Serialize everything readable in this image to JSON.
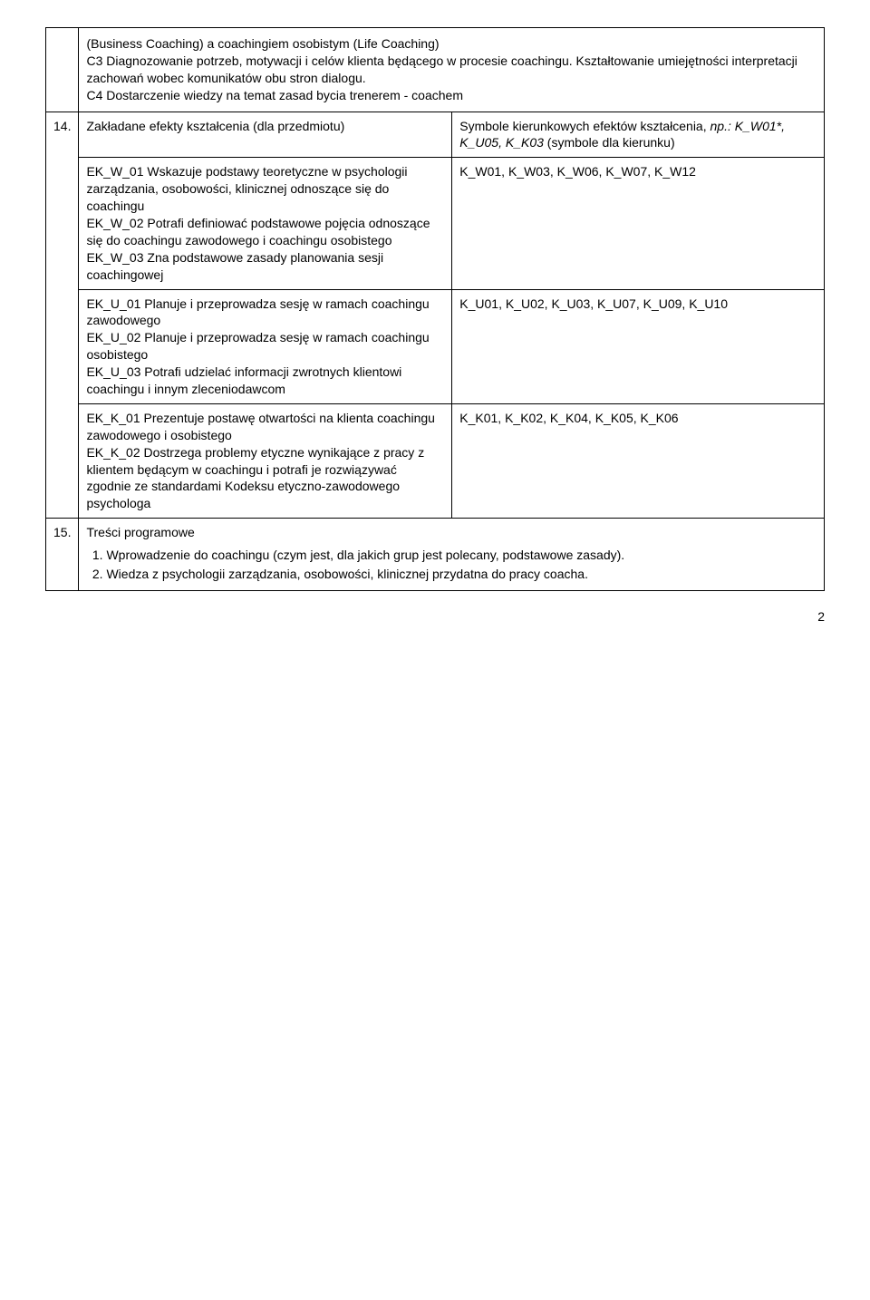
{
  "row13": {
    "text": "(Business Coaching) a coachingiem osobistym (Life Coaching)\nC3 Diagnozowanie potrzeb, motywacji i celów klienta będącego w procesie coachingu. Kształtowanie umiejętności interpretacji zachowań wobec komunikatów obu stron dialogu.\nC4 Dostarczenie wiedzy na temat zasad bycia trenerem - coachem"
  },
  "row14": {
    "num": "14.",
    "header_left": "Zakładane efekty kształcenia (dla przedmiotu)",
    "header_right_1": "Symbole kierunkowych efektów kształcenia, ",
    "header_right_italic": "np.: K_W01*, K_U05, K_K03",
    "header_right_2": " (symbole dla kierunku)",
    "ek_w_left": "EK_W_01 Wskazuje podstawy teoretyczne w psychologii zarządzania, osobowości, klinicznej odnoszące się do coachingu\nEK_W_02 Potrafi definiować podstawowe pojęcia odnoszące się do coachingu zawodowego i coachingu osobistego\nEK_W_03 Zna podstawowe zasady planowania sesji coachingowej",
    "ek_w_right": "K_W01, K_W03, K_W06, K_W07, K_W12",
    "ek_u_left": "EK_U_01 Planuje i przeprowadza sesję w ramach coachingu zawodowego\nEK_U_02 Planuje i przeprowadza sesję w ramach coachingu osobistego\nEK_U_03 Potrafi udzielać informacji zwrotnych klientowi coachingu i innym zleceniodawcom",
    "ek_u_right": "K_U01, K_U02, K_U03, K_U07, K_U09, K_U10",
    "ek_k_left": "EK_K_01 Prezentuje postawę otwartości na klienta coachingu zawodowego i osobistego\nEK_K_02 Dostrzega problemy etyczne wynikające z pracy z klientem będącym w coachingu i potrafi je rozwiązywać zgodnie ze standardami Kodeksu etyczno-zawodowego psychologa",
    "ek_k_right": "K_K01, K_K02, K_K04, K_K05, K_K06"
  },
  "row15": {
    "num": "15.",
    "title": "Treści programowe",
    "item1": "Wprowadzenie do coachingu (czym jest, dla jakich grup jest polecany, podstawowe zasady).",
    "item2": "Wiedza z psychologii zarządzania, osobowości, klinicznej przydatna do pracy coacha."
  },
  "page_number": "2"
}
